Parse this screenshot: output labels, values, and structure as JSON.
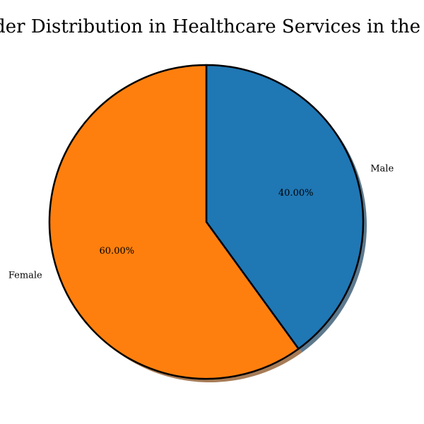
{
  "chart_data": {
    "type": "pie",
    "title": "Gender Distribution in Healthcare Services in the USA",
    "categories": [
      "Male",
      "Female"
    ],
    "values": [
      40.0,
      60.0
    ],
    "percent_labels": [
      "40.00%",
      "60.00%"
    ],
    "colors": [
      "#1f77b4",
      "#ff7f0e"
    ],
    "edge_color": "#000000",
    "shadow": true,
    "start_angle_deg": 90,
    "direction": "clockwise"
  }
}
